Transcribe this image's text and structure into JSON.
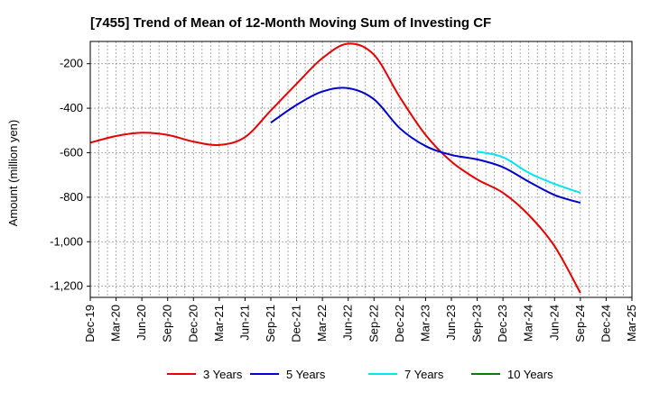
{
  "chart_data": {
    "type": "line",
    "title": "[7455]  Trend of Mean of 12-Month Moving Sum of Investing CF",
    "xlabel": "",
    "ylabel": "Amount (million yen)",
    "ylim": [
      -1250,
      -100
    ],
    "yticks": [
      -200,
      -400,
      -600,
      -800,
      -1000,
      -1200
    ],
    "ytick_labels": [
      "-200",
      "-400",
      "-600",
      "-800",
      "-1,000",
      "-1,200"
    ],
    "categories": [
      "Dec-19",
      "Mar-20",
      "Jun-20",
      "Sep-20",
      "Dec-20",
      "Mar-21",
      "Jun-21",
      "Sep-21",
      "Dec-21",
      "Mar-22",
      "Jun-22",
      "Sep-22",
      "Dec-22",
      "Mar-23",
      "Jun-23",
      "Sep-23",
      "Dec-23",
      "Mar-24",
      "Jun-24",
      "Sep-24",
      "Dec-24",
      "Mar-25"
    ],
    "series": [
      {
        "name": "3 Years",
        "color": "#e60000",
        "values": [
          -555,
          -525,
          -510,
          -520,
          -550,
          -565,
          -530,
          -410,
          -290,
          -175,
          -110,
          -160,
          -350,
          -520,
          -640,
          -720,
          -780,
          -880,
          -1020,
          -1230,
          null,
          null
        ]
      },
      {
        "name": "5 Years",
        "color": "#0000cc",
        "values": [
          null,
          null,
          null,
          null,
          null,
          null,
          null,
          -465,
          -385,
          -325,
          -310,
          -360,
          -490,
          -570,
          -610,
          -630,
          -665,
          -730,
          -790,
          -825,
          null,
          null
        ]
      },
      {
        "name": "7 Years",
        "color": "#00e5ee",
        "values": [
          null,
          null,
          null,
          null,
          null,
          null,
          null,
          null,
          null,
          null,
          null,
          null,
          null,
          null,
          null,
          -595,
          -620,
          -690,
          -740,
          -780,
          null,
          null
        ]
      },
      {
        "name": "10 Years",
        "color": "#008000",
        "values": [
          null,
          null,
          null,
          null,
          null,
          null,
          null,
          null,
          null,
          null,
          null,
          null,
          null,
          null,
          null,
          null,
          null,
          null,
          null,
          null,
          null,
          null
        ]
      }
    ]
  }
}
